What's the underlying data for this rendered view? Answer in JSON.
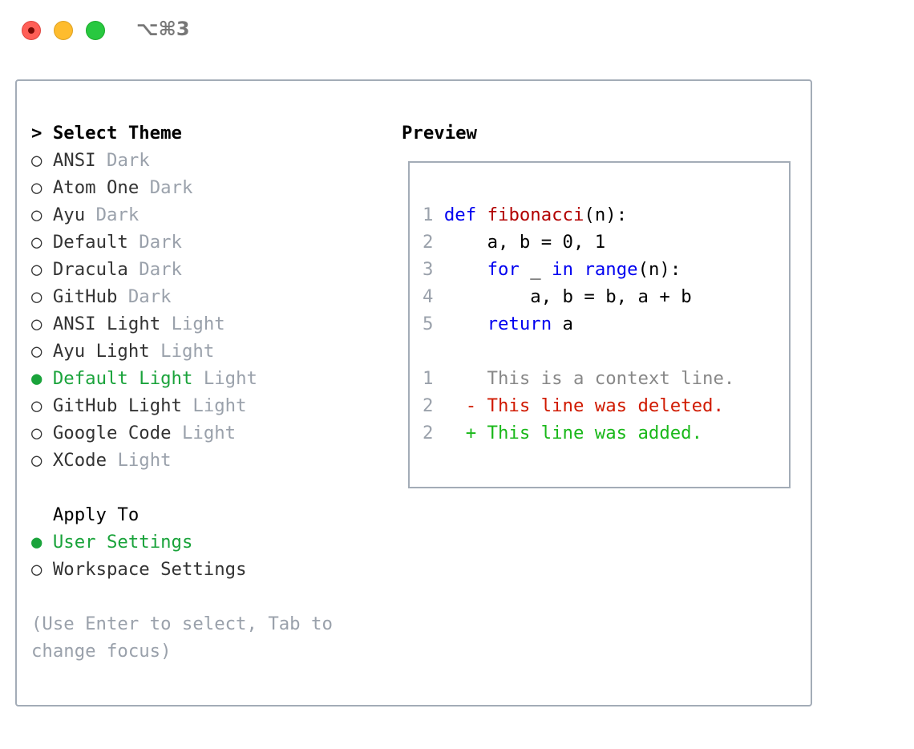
{
  "window": {
    "title": "⌥⌘3"
  },
  "theme_section": {
    "header": "> Select Theme",
    "items": [
      {
        "marker": "○",
        "name": "ANSI",
        "kind": "Dark",
        "selected": false
      },
      {
        "marker": "○",
        "name": "Atom One",
        "kind": "Dark",
        "selected": false
      },
      {
        "marker": "○",
        "name": "Ayu",
        "kind": "Dark",
        "selected": false
      },
      {
        "marker": "○",
        "name": "Default",
        "kind": "Dark",
        "selected": false
      },
      {
        "marker": "○",
        "name": "Dracula",
        "kind": "Dark",
        "selected": false
      },
      {
        "marker": "○",
        "name": "GitHub",
        "kind": "Dark",
        "selected": false
      },
      {
        "marker": "○",
        "name": "ANSI Light",
        "kind": "Light",
        "selected": false
      },
      {
        "marker": "○",
        "name": "Ayu Light",
        "kind": "Light",
        "selected": false
      },
      {
        "marker": "●",
        "name": "Default Light",
        "kind": "Light",
        "selected": true
      },
      {
        "marker": "○",
        "name": "GitHub Light",
        "kind": "Light",
        "selected": false
      },
      {
        "marker": "○",
        "name": "Google Code",
        "kind": "Light",
        "selected": false
      },
      {
        "marker": "○",
        "name": "XCode",
        "kind": "Light",
        "selected": false
      }
    ]
  },
  "apply_section": {
    "header": "  Apply To",
    "items": [
      {
        "marker": "●",
        "name": "User Settings",
        "selected": true
      },
      {
        "marker": "○",
        "name": "Workspace Settings",
        "selected": false
      }
    ]
  },
  "hint": [
    "(Use Enter to select, Tab to",
    "change focus)"
  ],
  "preview": {
    "header": "Preview",
    "code": {
      "l1": {
        "n": "1",
        "kw": "def",
        "fn": "fibonacci",
        "rest": "(n):"
      },
      "l2": {
        "n": "2",
        "text": "    a, b = 0, 1"
      },
      "l3": {
        "n": "3",
        "indent": "    ",
        "kw1": "for",
        "mid": " _ ",
        "kw2": "in",
        "sp": " ",
        "kw3": "range",
        "rest": "(n):"
      },
      "l4": {
        "n": "4",
        "text": "        a, b = b, a + b"
      },
      "l5": {
        "n": "5",
        "indent": "    ",
        "kw": "return",
        "rest": " a"
      }
    },
    "diff": [
      {
        "n": "1",
        "text": "     This is a context line."
      },
      {
        "n": "2",
        "text": "   - This line was deleted."
      },
      {
        "n": "2",
        "text": "   + This line was added."
      }
    ]
  },
  "colors": {
    "selected": "#1aa33b",
    "keyword": "#0000f0",
    "function": "#b20000",
    "deleted": "#d01a00",
    "added": "#1ab81a",
    "dim": "#9aa1ab"
  }
}
